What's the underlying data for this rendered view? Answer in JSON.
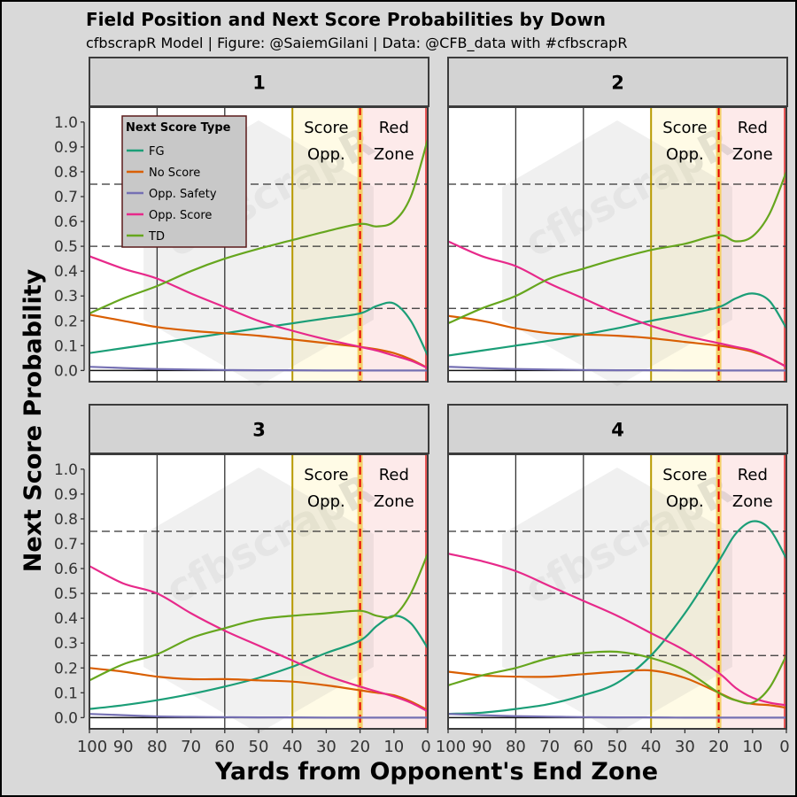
{
  "chart_data": {
    "type": "line",
    "title": "Field Position and Next Score Probabilities by Down",
    "subtitle": "cfbscrapR Model | Figure: @SaiemGilani | Data: @CFB_data with #cfbscrapR",
    "xlabel": "Yards from Opponent's End Zone",
    "ylabel": "Next Score Probability",
    "xlim": [
      100,
      0
    ],
    "ylim": [
      0,
      1
    ],
    "x_ticks": [
      100,
      90,
      80,
      70,
      60,
      50,
      40,
      30,
      20,
      10,
      0
    ],
    "x_tick_labels": [
      "100",
      "90",
      "80",
      "70",
      "60",
      "50",
      "40",
      "30",
      "20",
      "10",
      "0"
    ],
    "y_ticks": [
      0,
      0.1,
      0.2,
      0.3,
      0.4,
      0.5,
      0.6,
      0.7,
      0.8,
      0.9,
      1.0
    ],
    "y_tick_labels": [
      "0.0",
      "0.1",
      "0.2",
      "0.3",
      "0.4",
      "0.5",
      "0.6",
      "0.7",
      "0.8",
      "0.9",
      "1.0"
    ],
    "watermark": "cfbscrapR",
    "reference_lines": {
      "horizontal_dashed": [
        0.25,
        0.5,
        0.75
      ],
      "vertical_solid": [
        100,
        80,
        60,
        40
      ],
      "score_opp_line": 40,
      "red_zone_line": 20
    },
    "regions": [
      {
        "name": "Score Opp.",
        "line1": "Score",
        "line2": "Opp.",
        "x_from": 40,
        "x_to": 20,
        "color": "#fffbe6"
      },
      {
        "name": "Red Zone",
        "line1": "Red",
        "line2": "Zone",
        "x_from": 20,
        "x_to": 0,
        "color": "#fdeaea"
      }
    ],
    "legend": {
      "title": "Next Score Type",
      "position": "top-left",
      "entries": [
        {
          "name": "FG",
          "color": "#1b9e77"
        },
        {
          "name": "No Score",
          "color": "#d95f02"
        },
        {
          "name": "Opp. Safety",
          "color": "#7570b3"
        },
        {
          "name": "Opp. Score",
          "color": "#e7298a"
        },
        {
          "name": "TD",
          "color": "#66a61e"
        }
      ]
    },
    "panels": [
      {
        "down": "1",
        "x": [
          100,
          90,
          80,
          70,
          60,
          50,
          40,
          30,
          20,
          15,
          10,
          5,
          0
        ],
        "series": [
          {
            "name": "FG",
            "values": [
              0.07,
              0.09,
              0.11,
              0.13,
              0.15,
              0.17,
              0.19,
              0.21,
              0.23,
              0.26,
              0.27,
              0.2,
              0.06
            ]
          },
          {
            "name": "No Score",
            "values": [
              0.225,
              0.2,
              0.175,
              0.16,
              0.15,
              0.14,
              0.125,
              0.11,
              0.095,
              0.085,
              0.07,
              0.045,
              0.01
            ]
          },
          {
            "name": "Opp. Safety",
            "values": [
              0.015,
              0.01,
              0.006,
              0.004,
              0.002,
              0.001,
              0.001,
              0.0,
              0.0,
              0.0,
              0.0,
              0.0,
              0.0
            ]
          },
          {
            "name": "Opp. Score",
            "values": [
              0.46,
              0.41,
              0.37,
              0.31,
              0.255,
              0.2,
              0.16,
              0.125,
              0.095,
              0.08,
              0.06,
              0.04,
              0.01
            ]
          },
          {
            "name": "TD",
            "values": [
              0.23,
              0.29,
              0.34,
              0.4,
              0.45,
              0.49,
              0.525,
              0.56,
              0.59,
              0.58,
              0.6,
              0.7,
              0.93
            ]
          }
        ]
      },
      {
        "down": "2",
        "x": [
          100,
          90,
          80,
          70,
          60,
          50,
          40,
          30,
          20,
          15,
          10,
          5,
          0
        ],
        "series": [
          {
            "name": "FG",
            "values": [
              0.06,
              0.08,
              0.1,
              0.12,
              0.145,
              0.17,
              0.2,
              0.225,
              0.255,
              0.29,
              0.31,
              0.28,
              0.17
            ]
          },
          {
            "name": "No Score",
            "values": [
              0.22,
              0.2,
              0.17,
              0.15,
              0.145,
              0.14,
              0.13,
              0.115,
              0.1,
              0.09,
              0.075,
              0.05,
              0.015
            ]
          },
          {
            "name": "Opp. Safety",
            "values": [
              0.015,
              0.01,
              0.006,
              0.004,
              0.002,
              0.001,
              0.001,
              0.0,
              0.0,
              0.0,
              0.0,
              0.0,
              0.0
            ]
          },
          {
            "name": "Opp. Score",
            "values": [
              0.52,
              0.46,
              0.42,
              0.35,
              0.29,
              0.23,
              0.18,
              0.14,
              0.11,
              0.095,
              0.08,
              0.05,
              0.015
            ]
          },
          {
            "name": "TD",
            "values": [
              0.19,
              0.25,
              0.3,
              0.37,
              0.41,
              0.45,
              0.485,
              0.51,
              0.545,
              0.52,
              0.54,
              0.63,
              0.8
            ]
          }
        ]
      },
      {
        "down": "3",
        "x": [
          100,
          90,
          80,
          70,
          60,
          50,
          40,
          30,
          20,
          15,
          10,
          5,
          0
        ],
        "series": [
          {
            "name": "FG",
            "values": [
              0.035,
              0.05,
              0.07,
              0.095,
              0.125,
              0.16,
              0.205,
              0.26,
              0.31,
              0.37,
              0.41,
              0.38,
              0.28
            ]
          },
          {
            "name": "No Score",
            "values": [
              0.2,
              0.185,
              0.165,
              0.155,
              0.155,
              0.15,
              0.145,
              0.13,
              0.11,
              0.1,
              0.09,
              0.065,
              0.03
            ]
          },
          {
            "name": "Opp. Safety",
            "values": [
              0.015,
              0.01,
              0.005,
              0.003,
              0.002,
              0.001,
              0.001,
              0.0,
              0.0,
              0.0,
              0.0,
              0.0,
              0.0
            ]
          },
          {
            "name": "Opp. Score",
            "values": [
              0.61,
              0.54,
              0.5,
              0.42,
              0.35,
              0.29,
              0.23,
              0.17,
              0.125,
              0.105,
              0.085,
              0.06,
              0.025
            ]
          },
          {
            "name": "TD",
            "values": [
              0.15,
              0.215,
              0.255,
              0.32,
              0.36,
              0.395,
              0.41,
              0.42,
              0.43,
              0.41,
              0.41,
              0.5,
              0.66
            ]
          }
        ]
      },
      {
        "down": "4",
        "x": [
          100,
          90,
          80,
          70,
          60,
          50,
          40,
          30,
          20,
          15,
          10,
          5,
          0
        ],
        "series": [
          {
            "name": "FG",
            "values": [
              0.015,
              0.02,
              0.035,
              0.055,
              0.09,
              0.14,
              0.25,
              0.42,
              0.63,
              0.74,
              0.79,
              0.76,
              0.64
            ]
          },
          {
            "name": "No Score",
            "values": [
              0.185,
              0.17,
              0.165,
              0.165,
              0.175,
              0.185,
              0.19,
              0.16,
              0.1,
              0.07,
              0.055,
              0.05,
              0.04
            ]
          },
          {
            "name": "Opp. Safety",
            "values": [
              0.015,
              0.01,
              0.006,
              0.004,
              0.002,
              0.001,
              0.001,
              0.0,
              0.0,
              0.0,
              0.0,
              0.0,
              0.0
            ]
          },
          {
            "name": "Opp. Score",
            "values": [
              0.66,
              0.63,
              0.59,
              0.53,
              0.47,
              0.41,
              0.34,
              0.27,
              0.18,
              0.12,
              0.08,
              0.06,
              0.05
            ]
          },
          {
            "name": "TD",
            "values": [
              0.13,
              0.17,
              0.2,
              0.24,
              0.26,
              0.265,
              0.24,
              0.19,
              0.1,
              0.07,
              0.06,
              0.12,
              0.25
            ]
          }
        ]
      }
    ]
  }
}
